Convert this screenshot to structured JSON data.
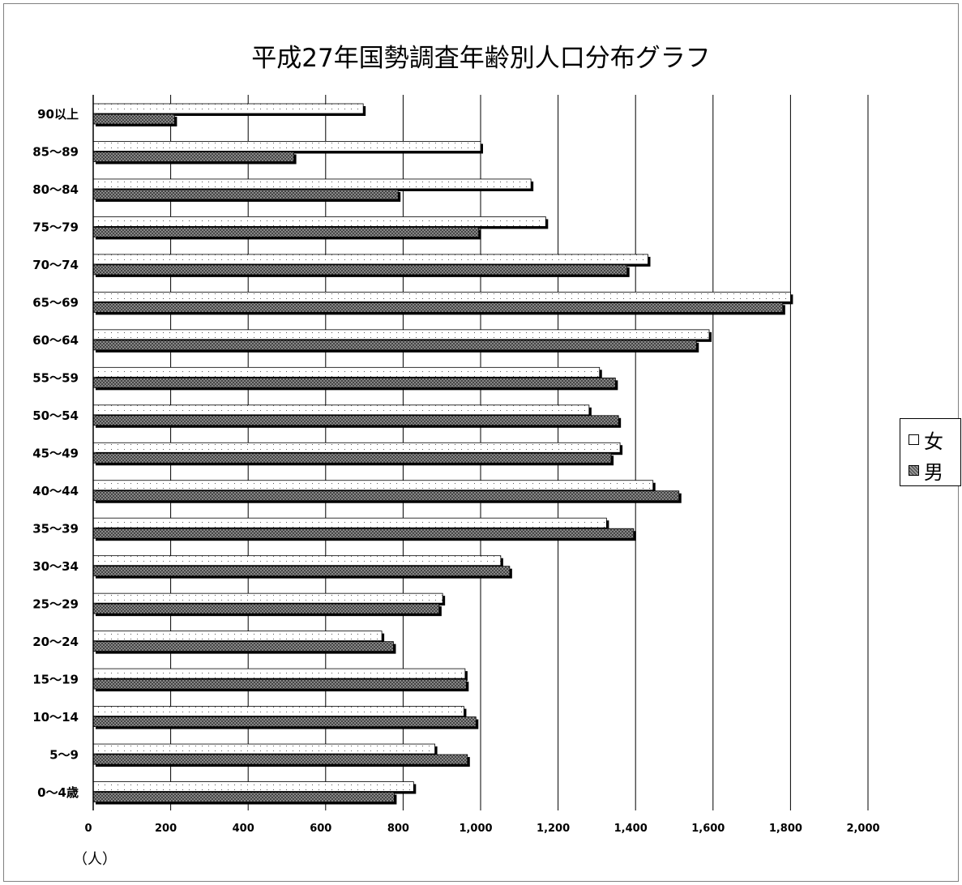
{
  "chart_data": {
    "type": "bar",
    "orientation": "horizontal",
    "title": "平成27年国勢調査年齢別人口分布グラフ",
    "unit_label": "（人）",
    "xlim": [
      0,
      2000
    ],
    "x_ticks": [
      "0",
      "200",
      "400",
      "600",
      "800",
      "1,000",
      "1,200",
      "1,400",
      "1,600",
      "1,800",
      "2,000"
    ],
    "grid": true,
    "legend_position": "right",
    "categories": [
      "90以上",
      "85～89",
      "80～84",
      "75～79",
      "70～74",
      "65～69",
      "60～64",
      "55～59",
      "50～54",
      "45～49",
      "40～44",
      "35～39",
      "30～34",
      "25～29",
      "20～24",
      "15～19",
      "10～14",
      "5～9",
      "0～4歳"
    ],
    "series": [
      {
        "name": "女",
        "pattern": "dots",
        "color": "#ffffff",
        "values": [
          697,
          1000,
          1130,
          1168,
          1432,
          1800,
          1590,
          1307,
          1280,
          1360,
          1445,
          1325,
          1052,
          902,
          745,
          960,
          957,
          882,
          827
        ]
      },
      {
        "name": "男",
        "pattern": "crosshatch",
        "color": "#808080",
        "values": [
          210,
          518,
          787,
          995,
          1378,
          1780,
          1557,
          1348,
          1356,
          1337,
          1512,
          1395,
          1075,
          893,
          775,
          963,
          988,
          966,
          777
        ]
      }
    ]
  }
}
